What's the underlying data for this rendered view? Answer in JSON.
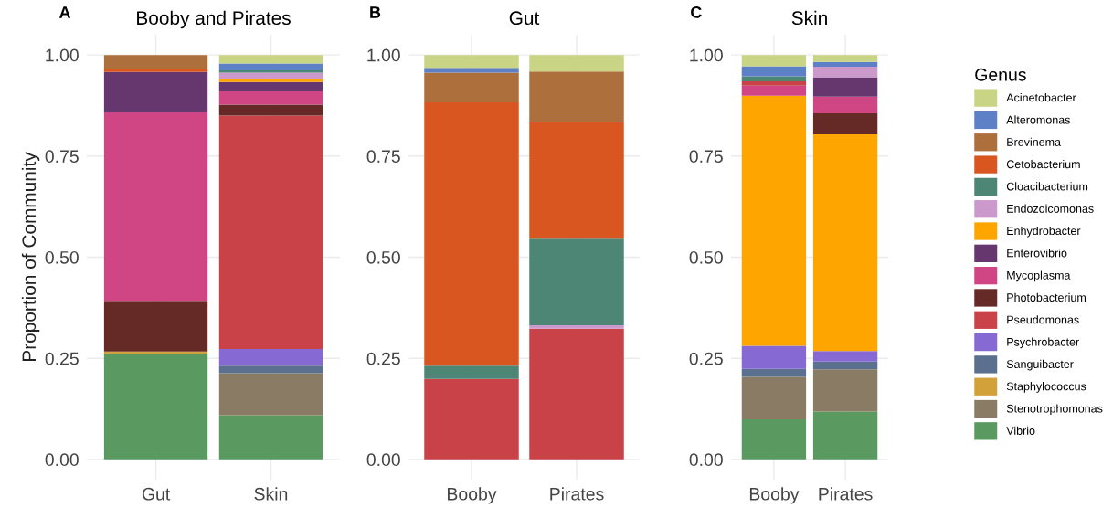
{
  "chart_data": [
    {
      "type": "bar",
      "stacked": true,
      "title": "Booby and Pirates",
      "ylabel": "Proportion of Community",
      "annotations": [
        "A"
      ],
      "categories": [
        "Gut",
        "Skin"
      ],
      "ylim": [
        -0.05,
        1.05
      ],
      "yticks": [
        {
          "value": 0,
          "label": "0.00"
        },
        {
          "value": 0.25,
          "label": "0.25"
        },
        {
          "value": 0.5,
          "label": "0.50"
        },
        {
          "value": 0.75,
          "label": "0.75"
        },
        {
          "value": 1,
          "label": "1.00"
        }
      ],
      "grid": true,
      "legend": "right",
      "legend_title": "Genus",
      "series": [
        {
          "name": "Vibrio",
          "color": "#5a9a60",
          "values": [
            0.261,
            0.109
          ]
        },
        {
          "name": "Stenotrophomonas",
          "color": "#8a7b65",
          "values": [
            null,
            0.104
          ]
        },
        {
          "name": "Staphylococcus",
          "color": "#d3a13a",
          "values": [
            0.006,
            null
          ]
        },
        {
          "name": "Sanguibacter",
          "color": "#5b708e",
          "values": [
            null,
            0.019
          ]
        },
        {
          "name": "Psychrobacter",
          "color": "#8769d4",
          "values": [
            null,
            0.041
          ]
        },
        {
          "name": "Pseudomonas",
          "color": "#c94248",
          "values": [
            null,
            0.577
          ]
        },
        {
          "name": "Photobacterium",
          "color": "#662a26",
          "values": [
            0.125,
            0.027
          ]
        },
        {
          "name": "Mycoplasma",
          "color": "#d04584",
          "values": [
            0.466,
            0.033
          ]
        },
        {
          "name": "Enterovibrio",
          "color": "#66366e",
          "values": [
            0.1,
            0.023
          ]
        },
        {
          "name": "Enhydrobacter",
          "color": "#ffa500",
          "values": [
            null,
            0.008
          ]
        },
        {
          "name": "Endozoicomonas",
          "color": "#cc99cc",
          "values": [
            null,
            0.015
          ]
        },
        {
          "name": "Cloacibacterium",
          "color": "#4e8676",
          "values": [
            null,
            0.006
          ]
        },
        {
          "name": "Cetobacterium",
          "color": "#d95621",
          "values": [
            0.007,
            null
          ]
        },
        {
          "name": "Brevinema",
          "color": "#ad6f3b",
          "values": [
            0.035,
            null
          ]
        },
        {
          "name": "Alteromonas",
          "color": "#5e80c6",
          "values": [
            null,
            0.017
          ]
        },
        {
          "name": "Acinetobacter",
          "color": "#c9d584",
          "values": [
            null,
            0.021
          ]
        }
      ]
    },
    {
      "type": "bar",
      "stacked": true,
      "title": "Gut",
      "annotations": [
        "B"
      ],
      "categories": [
        "Booby",
        "Pirates"
      ],
      "ylim": [
        -0.05,
        1.05
      ],
      "yticks": [
        {
          "value": 0,
          "label": "0.00"
        },
        {
          "value": 0.25,
          "label": "0.25"
        },
        {
          "value": 0.5,
          "label": "0.50"
        },
        {
          "value": 0.75,
          "label": "0.75"
        },
        {
          "value": 1,
          "label": "1.00"
        }
      ],
      "grid": true,
      "legend": false,
      "series": [
        {
          "name": "Pseudomonas",
          "color": "#c94248",
          "values": [
            0.199,
            0.323
          ]
        },
        {
          "name": "Endozoicomonas",
          "color": "#cc99cc",
          "values": [
            null,
            0.009
          ]
        },
        {
          "name": "Cloacibacterium",
          "color": "#4e8676",
          "values": [
            0.033,
            0.214
          ]
        },
        {
          "name": "Cetobacterium",
          "color": "#d95621",
          "values": [
            0.651,
            0.288
          ]
        },
        {
          "name": "Brevinema",
          "color": "#ad6f3b",
          "values": [
            0.073,
            0.125
          ]
        },
        {
          "name": "Alteromonas",
          "color": "#5e80c6",
          "values": [
            0.012,
            null
          ]
        },
        {
          "name": "Acinetobacter",
          "color": "#c9d584",
          "values": [
            0.032,
            0.041
          ]
        }
      ]
    },
    {
      "type": "bar",
      "stacked": true,
      "title": "Skin",
      "annotations": [
        "C"
      ],
      "categories": [
        "Booby",
        "Pirates"
      ],
      "ylim": [
        -0.05,
        1.05
      ],
      "yticks": [
        {
          "value": 0,
          "label": "0.00"
        },
        {
          "value": 0.25,
          "label": "0.25"
        },
        {
          "value": 0.5,
          "label": "0.50"
        },
        {
          "value": 0.75,
          "label": "0.75"
        },
        {
          "value": 1,
          "label": "1.00"
        }
      ],
      "grid": true,
      "legend": false,
      "series": [
        {
          "name": "Vibrio",
          "color": "#5a9a60",
          "values": [
            0.099,
            0.118
          ]
        },
        {
          "name": "Stenotrophomonas",
          "color": "#8a7b65",
          "values": [
            0.105,
            0.105
          ]
        },
        {
          "name": "Sanguibacter",
          "color": "#5b708e",
          "values": [
            0.02,
            0.019
          ]
        },
        {
          "name": "Psychrobacter",
          "color": "#8769d4",
          "values": [
            0.057,
            0.026
          ]
        },
        {
          "name": "Enhydrobacter",
          "color": "#ffa500",
          "values": [
            0.618,
            0.536
          ]
        },
        {
          "name": "Photobacterium",
          "color": "#662a26",
          "values": [
            null,
            0.052
          ]
        },
        {
          "name": "Mycoplasma",
          "color": "#d04584",
          "values": [
            0.025,
            0.041
          ]
        },
        {
          "name": "Pseudomonas",
          "color": "#c94248",
          "values": [
            0.011,
            null
          ]
        },
        {
          "name": "Enterovibrio",
          "color": "#66366e",
          "values": [
            null,
            0.048
          ]
        },
        {
          "name": "Endozoicomonas",
          "color": "#cc99cc",
          "values": [
            null,
            0.026
          ]
        },
        {
          "name": "Cloacibacterium",
          "color": "#4e8676",
          "values": [
            0.012,
            null
          ]
        },
        {
          "name": "Alteromonas",
          "color": "#5e80c6",
          "values": [
            0.025,
            0.012
          ]
        },
        {
          "name": "Acinetobacter",
          "color": "#c9d584",
          "values": [
            0.028,
            0.017
          ]
        }
      ]
    }
  ]
}
